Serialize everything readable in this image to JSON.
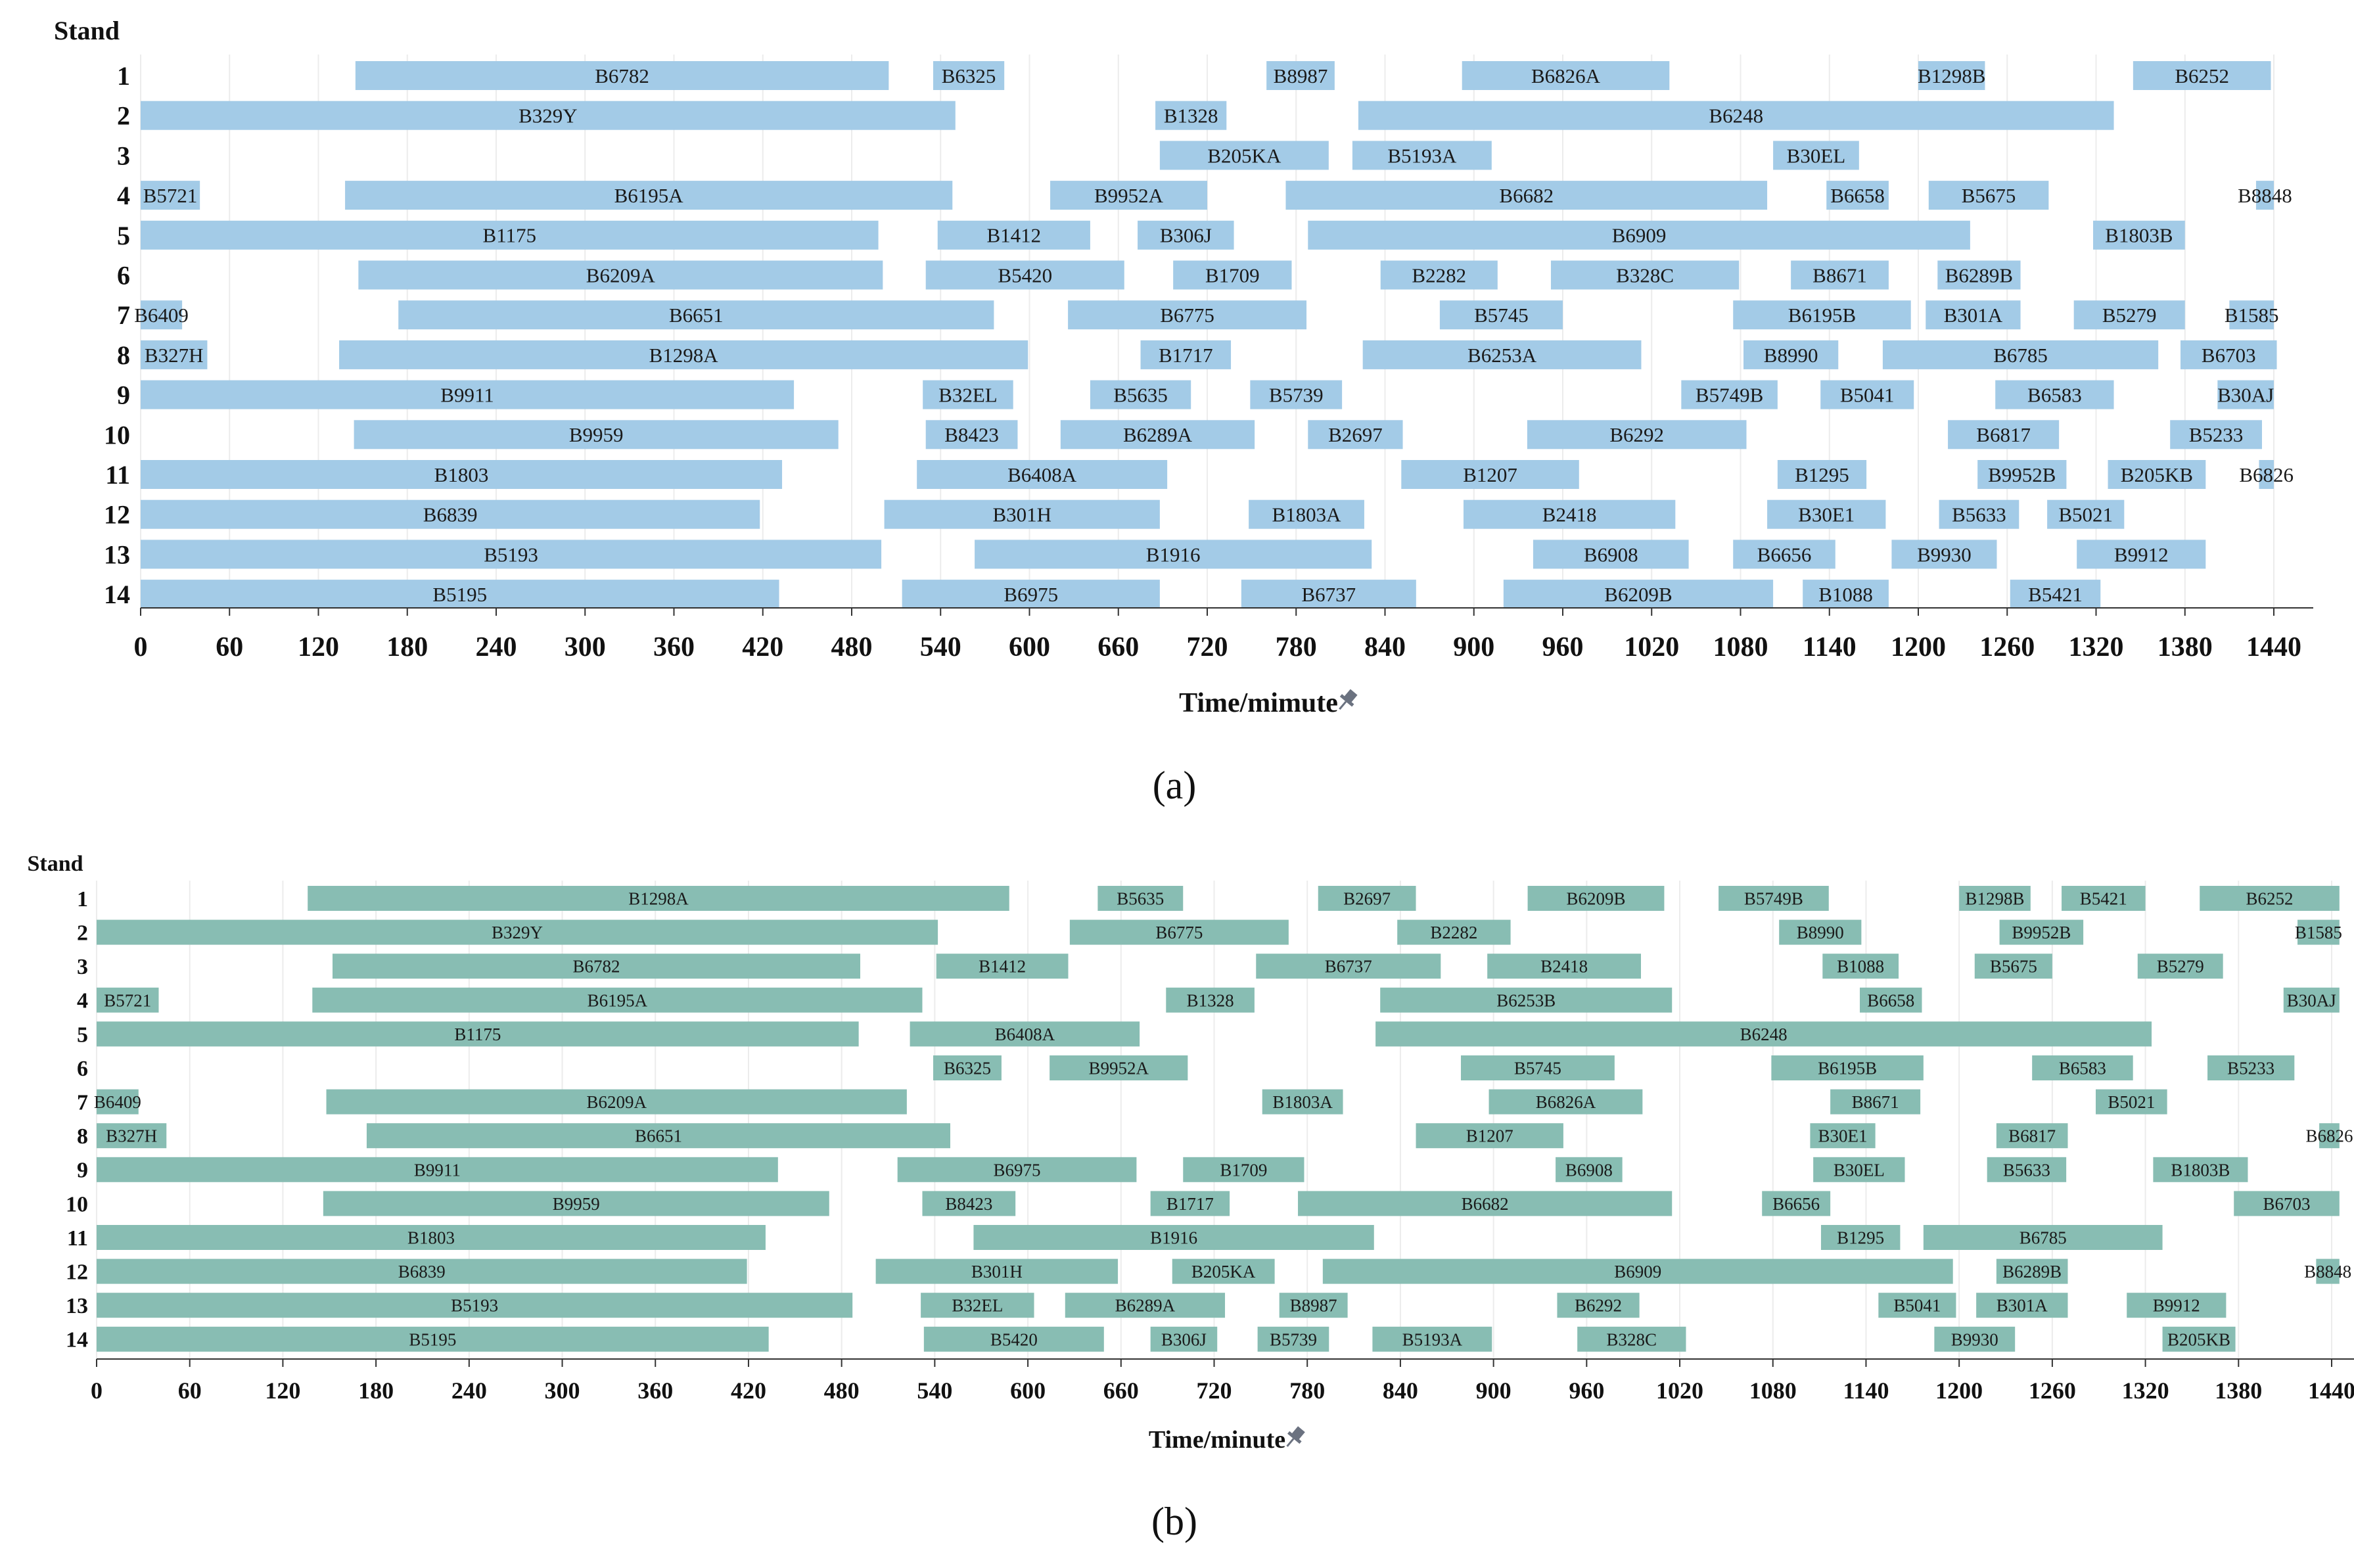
{
  "chart_data": [
    {
      "type": "gantt",
      "panel": "a",
      "caption": "(a)",
      "ylabel": "Stand",
      "xlabel": "Time/mimute",
      "xlim": [
        0,
        1440
      ],
      "xticks": [
        "0",
        "60",
        "120",
        "180",
        "240",
        "300",
        "360",
        "420",
        "480",
        "540",
        "600",
        "660",
        "720",
        "780",
        "840",
        "900",
        "960",
        "1020",
        "1080",
        "1140",
        "1200",
        "1260",
        "1320",
        "1380",
        "1440"
      ],
      "color": "#a3cbe7",
      "stands": [
        "1",
        "2",
        "3",
        "4",
        "5",
        "6",
        "7",
        "8",
        "9",
        "10",
        "11",
        "12",
        "13",
        "14"
      ],
      "rows": [
        [
          [
            "B6782",
            145,
            505
          ],
          [
            "B6325",
            535,
            583
          ],
          [
            "B8987",
            760,
            806
          ],
          [
            "B6826A",
            892,
            1032
          ],
          [
            "B1298B",
            1200,
            1245
          ],
          [
            "B6252",
            1345,
            1438
          ]
        ],
        [
          [
            "B329Y",
            0,
            550
          ],
          [
            "B1328",
            685,
            733
          ],
          [
            "B6248",
            822,
            1332
          ]
        ],
        [
          [
            "B205KA",
            688,
            802
          ],
          [
            "B5193A",
            818,
            912
          ],
          [
            "B30EL",
            1102,
            1160
          ]
        ],
        [
          [
            "B5721",
            0,
            40
          ],
          [
            "B6195A",
            138,
            548
          ],
          [
            "B9952A",
            614,
            720
          ],
          [
            "B6682",
            773,
            1098
          ],
          [
            "B6658",
            1138,
            1180
          ],
          [
            "B5675",
            1207,
            1288
          ],
          [
            "B8848",
            1428,
            1440
          ]
        ],
        [
          [
            "B1175",
            0,
            498
          ],
          [
            "B1412",
            538,
            641
          ],
          [
            "B306J",
            673,
            738
          ],
          [
            "B6909",
            788,
            1235
          ],
          [
            "B1803B",
            1318,
            1380
          ]
        ],
        [
          [
            "B6209A",
            147,
            501
          ],
          [
            "B5420",
            530,
            664
          ],
          [
            "B1709",
            697,
            777
          ],
          [
            "B2282",
            837,
            916
          ],
          [
            "B328C",
            952,
            1079
          ],
          [
            "B8671",
            1114,
            1180
          ],
          [
            "B6289B",
            1213,
            1269
          ]
        ],
        [
          [
            "B6409",
            0,
            28
          ],
          [
            "B6651",
            174,
            576
          ],
          [
            "B6775",
            626,
            787
          ],
          [
            "B5745",
            877,
            960
          ],
          [
            "B6195B",
            1075,
            1195
          ],
          [
            "B301A",
            1205,
            1269
          ],
          [
            "B5279",
            1305,
            1380
          ],
          [
            "B1585",
            1410,
            1440
          ]
        ],
        [
          [
            "B327H",
            0,
            45
          ],
          [
            "B1298A",
            134,
            599
          ],
          [
            "B1717",
            675,
            736
          ],
          [
            "B6253A",
            825,
            1013
          ],
          [
            "B8990",
            1082,
            1146
          ],
          [
            "B6785",
            1176,
            1362
          ],
          [
            "B6703",
            1377,
            1442
          ]
        ],
        [
          [
            "B9911",
            0,
            441
          ],
          [
            "B32EL",
            528,
            589
          ],
          [
            "B5635",
            641,
            709
          ],
          [
            "B5739",
            749,
            811
          ],
          [
            "B5749B",
            1040,
            1105
          ],
          [
            "B5041",
            1134,
            1197
          ],
          [
            "B6583",
            1252,
            1332
          ],
          [
            "B30AJ",
            1402,
            1440
          ]
        ],
        [
          [
            "B9959",
            144,
            471
          ],
          [
            "B8423",
            530,
            592
          ],
          [
            "B6289A",
            621,
            752
          ],
          [
            "B2697",
            788,
            852
          ],
          [
            "B6292",
            936,
            1084
          ],
          [
            "B6817",
            1220,
            1295
          ],
          [
            "B5233",
            1370,
            1432
          ]
        ],
        [
          [
            "B1803",
            0,
            433
          ],
          [
            "B6408A",
            524,
            693
          ],
          [
            "B1207",
            851,
            971
          ],
          [
            "B1295",
            1105,
            1165
          ],
          [
            "B9952B",
            1240,
            1300
          ],
          [
            "B205KB",
            1328,
            1394
          ],
          [
            "B6826",
            1430,
            1440
          ]
        ],
        [
          [
            "B6839",
            0,
            418
          ],
          [
            "B301H",
            502,
            688
          ],
          [
            "B1803A",
            748,
            826
          ],
          [
            "B2418",
            893,
            1036
          ],
          [
            "B30E1",
            1098,
            1178
          ],
          [
            "B5633",
            1214,
            1268
          ],
          [
            "B5021",
            1287,
            1339
          ]
        ],
        [
          [
            "B5193",
            0,
            500
          ],
          [
            "B1916",
            563,
            831
          ],
          [
            "B6908",
            940,
            1045
          ],
          [
            "B6656",
            1075,
            1144
          ],
          [
            "B9930",
            1182,
            1253
          ],
          [
            "B9912",
            1307,
            1394
          ]
        ],
        [
          [
            "B5195",
            0,
            431
          ],
          [
            "B6975",
            514,
            688
          ],
          [
            "B6737",
            743,
            861
          ],
          [
            "B6209B",
            920,
            1102
          ],
          [
            "B1088",
            1122,
            1180
          ],
          [
            "B5421",
            1262,
            1323
          ]
        ]
      ]
    },
    {
      "type": "gantt",
      "panel": "b",
      "caption": "(b)",
      "ylabel": "Stand",
      "xlabel": "Time/minute",
      "xlim": [
        0,
        1440
      ],
      "xticks": [
        "0",
        "60",
        "120",
        "180",
        "240",
        "300",
        "360",
        "420",
        "480",
        "540",
        "600",
        "660",
        "720",
        "780",
        "840",
        "900",
        "960",
        "1020",
        "1080",
        "1140",
        "1200",
        "1260",
        "1320",
        "1380",
        "1440"
      ],
      "color": "#88bdb3",
      "stands": [
        "1",
        "2",
        "3",
        "4",
        "5",
        "6",
        "7",
        "8",
        "9",
        "10",
        "11",
        "12",
        "13",
        "14"
      ],
      "rows": [
        [
          [
            "B1298A",
            136,
            588
          ],
          [
            "B5635",
            645,
            700
          ],
          [
            "B2697",
            787,
            850
          ],
          [
            "B6209B",
            922,
            1010
          ],
          [
            "B5749B",
            1045,
            1116
          ],
          [
            "B1298B",
            1200,
            1246
          ],
          [
            "B5421",
            1266,
            1320
          ],
          [
            "B6252",
            1355,
            1445
          ]
        ],
        [
          [
            "B329Y",
            0,
            542
          ],
          [
            "B6775",
            627,
            768
          ],
          [
            "B2282",
            838,
            911
          ],
          [
            "B8990",
            1084,
            1137
          ],
          [
            "B9952B",
            1226,
            1280
          ],
          [
            "B1585",
            1418,
            1445
          ]
        ],
        [
          [
            "B6782",
            152,
            492
          ],
          [
            "B1412",
            541,
            626
          ],
          [
            "B6737",
            747,
            866
          ],
          [
            "B2418",
            896,
            995
          ],
          [
            "B1088",
            1112,
            1161
          ],
          [
            "B5675",
            1210,
            1260
          ],
          [
            "B5279",
            1315,
            1370
          ]
        ],
        [
          [
            "B5721",
            0,
            40
          ],
          [
            "B6195A",
            139,
            532
          ],
          [
            "B1328",
            689,
            746
          ],
          [
            "B6253B",
            827,
            1015
          ],
          [
            "B6658",
            1136,
            1176
          ],
          [
            "B30AJ",
            1409,
            1445
          ]
        ],
        [
          [
            "B1175",
            0,
            491
          ],
          [
            "B6408A",
            524,
            672
          ],
          [
            "B6248",
            824,
            1324
          ]
        ],
        [
          [
            "B6325",
            539,
            583
          ],
          [
            "B9952A",
            614,
            703
          ],
          [
            "B5745",
            879,
            978
          ],
          [
            "B6195B",
            1079,
            1177
          ],
          [
            "B6583",
            1247,
            1312
          ],
          [
            "B5233",
            1360,
            1416
          ]
        ],
        [
          [
            "B6409",
            0,
            27
          ],
          [
            "B6209A",
            148,
            522
          ],
          [
            "B1803A",
            751,
            803
          ],
          [
            "B6826A",
            897,
            996
          ],
          [
            "B8671",
            1117,
            1175
          ],
          [
            "B5021",
            1288,
            1334
          ]
        ],
        [
          [
            "B327H",
            0,
            45
          ],
          [
            "B6651",
            174,
            550
          ],
          [
            "B1207",
            850,
            945
          ],
          [
            "B30E1",
            1104,
            1146
          ],
          [
            "B6817",
            1224,
            1270
          ],
          [
            "B6826",
            1432,
            1445
          ]
        ],
        [
          [
            "B9911",
            0,
            439
          ],
          [
            "B6975",
            516,
            670
          ],
          [
            "B1709",
            700,
            778
          ],
          [
            "B6908",
            940,
            983
          ],
          [
            "B30EL",
            1106,
            1165
          ],
          [
            "B5633",
            1218,
            1269
          ],
          [
            "B1803B",
            1325,
            1386
          ]
        ],
        [
          [
            "B9959",
            146,
            472
          ],
          [
            "B8423",
            532,
            592
          ],
          [
            "B1717",
            679,
            730
          ],
          [
            "B6682",
            774,
            1015
          ],
          [
            "B6656",
            1073,
            1117
          ],
          [
            "B6703",
            1377,
            1445
          ]
        ],
        [
          [
            "B1803",
            0,
            431
          ],
          [
            "B1916",
            565,
            823
          ],
          [
            "B1295",
            1111,
            1162
          ],
          [
            "B6785",
            1177,
            1331
          ]
        ],
        [
          [
            "B6839",
            0,
            419
          ],
          [
            "B301H",
            502,
            658
          ],
          [
            "B205KA",
            693,
            759
          ],
          [
            "B6909",
            790,
            1196
          ],
          [
            "B6289B",
            1224,
            1270
          ],
          [
            "B8848",
            1430,
            1445
          ]
        ],
        [
          [
            "B5193",
            0,
            487
          ],
          [
            "B32EL",
            531,
            604
          ],
          [
            "B6289A",
            624,
            727
          ],
          [
            "B8987",
            762,
            806
          ],
          [
            "B6292",
            941,
            994
          ],
          [
            "B5041",
            1148,
            1198
          ],
          [
            "B301A",
            1211,
            1270
          ],
          [
            "B9912",
            1308,
            1372
          ]
        ],
        [
          [
            "B5195",
            0,
            433
          ],
          [
            "B5420",
            533,
            649
          ],
          [
            "B306J",
            679,
            722
          ],
          [
            "B5739",
            748,
            794
          ],
          [
            "B5193A",
            822,
            899
          ],
          [
            "B328C",
            954,
            1024
          ],
          [
            "B9930",
            1184,
            1236
          ],
          [
            "B205KB",
            1331,
            1378
          ]
        ]
      ]
    }
  ]
}
